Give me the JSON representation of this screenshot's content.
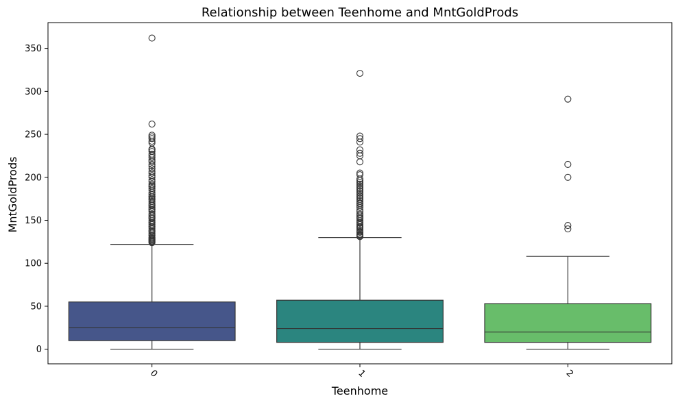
{
  "chart_data": {
    "type": "box",
    "title": "Relationship between Teenhome and MntGoldProds",
    "xlabel": "Teenhome",
    "ylabel": "MntGoldProds",
    "categories": [
      "0",
      "1",
      "2"
    ],
    "ylim": [
      -17,
      380
    ],
    "yticks": [
      0,
      50,
      100,
      150,
      200,
      250,
      300,
      350
    ],
    "grid": false,
    "legend": "none",
    "colors": [
      "#46568a",
      "#2b857f",
      "#68bd6a"
    ],
    "edge_color": "#333333",
    "boxes": [
      {
        "category": "0",
        "whisker_low": 0,
        "q1": 10,
        "median": 25,
        "q3": 55,
        "whisker_high": 122,
        "outliers": [
          124,
          125,
          126,
          127,
          128,
          129,
          130,
          132,
          133,
          135,
          137,
          138,
          140,
          142,
          143,
          145,
          147,
          148,
          150,
          152,
          153,
          155,
          157,
          160,
          162,
          163,
          165,
          167,
          168,
          170,
          172,
          174,
          175,
          177,
          178,
          180,
          182,
          185,
          187,
          189,
          190,
          192,
          195,
          197,
          200,
          202,
          205,
          207,
          210,
          213,
          215,
          218,
          220,
          223,
          225,
          227,
          230,
          232,
          233,
          240,
          242,
          245,
          247,
          249,
          262,
          362
        ]
      },
      {
        "category": "1",
        "whisker_low": 0,
        "q1": 8,
        "median": 24,
        "q3": 57,
        "whisker_high": 130,
        "outliers": [
          131,
          132,
          133,
          134,
          136,
          137,
          139,
          141,
          142,
          143,
          145,
          147,
          148,
          150,
          152,
          153,
          155,
          157,
          160,
          162,
          165,
          167,
          169,
          170,
          172,
          174,
          176,
          178,
          180,
          182,
          184,
          186,
          188,
          190,
          192,
          194,
          196,
          198,
          203,
          205,
          218,
          225,
          228,
          232,
          241,
          245,
          248,
          321
        ]
      },
      {
        "category": "2",
        "whisker_low": 0,
        "q1": 8,
        "median": 20,
        "q3": 53,
        "whisker_high": 108,
        "outliers": [
          140,
          144,
          200,
          215,
          291
        ]
      }
    ]
  }
}
